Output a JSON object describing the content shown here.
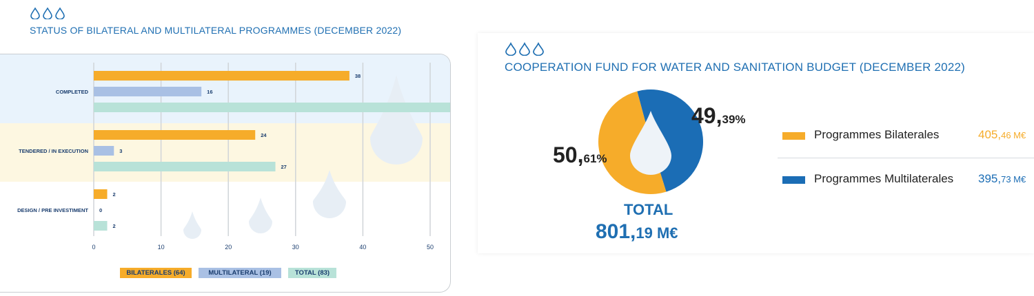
{
  "left": {
    "title": "STATUS OF BILATERAL AND MULTILATERAL PROGRAMMES (DECEMBER 2022)",
    "legend": [
      {
        "label": "BILATERALES (64)",
        "color": "#f6ac2a",
        "text_color": "#1a3d6e"
      },
      {
        "label": "MULTILATERAL (19)",
        "color": "#a9c0e4",
        "text_color": "#1a3d6e"
      },
      {
        "label": "TOTAL (83)",
        "color": "#b8e2d8",
        "text_color": "#1a3d6e"
      }
    ]
  },
  "right": {
    "title": "COOPERATION FUND FOR WATER AND SANITATION BUDGET (DECEMBER 2022)",
    "slice_bil_int": "50,",
    "slice_bil_dec": "61%",
    "slice_mul_int": "49,",
    "slice_mul_dec": "39%",
    "total_label": "TOTAL",
    "total_int": "801,",
    "total_dec": "19 M€",
    "legend": [
      {
        "label": "Programmes Bilaterales",
        "value_int": "405,",
        "value_dec": "46 M€",
        "color": "#f6ac2a"
      },
      {
        "label": "Programmes Multilaterales",
        "value_int": "395,",
        "value_dec": "73 M€",
        "color": "#1b6db5"
      }
    ]
  },
  "chart_data": [
    {
      "type": "bar",
      "orientation": "horizontal",
      "title": "STATUS OF BILATERAL AND MULTILATERAL PROGRAMMES (DECEMBER 2022)",
      "categories": [
        "COMPLETED",
        "TENDERED / IN EXECUTION",
        "DESIGN / PRE INVESTIMENT"
      ],
      "series": [
        {
          "name": "BILATERALES (64)",
          "values": [
            38,
            24,
            2
          ],
          "color": "#f6ac2a"
        },
        {
          "name": "MULTILATERAL (19)",
          "values": [
            16,
            3,
            0
          ],
          "color": "#a9c0e4"
        },
        {
          "name": "TOTAL (83)",
          "values": [
            54,
            27,
            2
          ],
          "color": "#b8e2d8"
        }
      ],
      "xlim": [
        0,
        50
      ],
      "xticks": [
        0,
        10,
        20,
        30,
        40,
        50
      ],
      "grid": true,
      "legend_position": "bottom"
    },
    {
      "type": "pie",
      "title": "COOPERATION FUND FOR WATER AND SANITATION BUDGET (DECEMBER 2022)",
      "labels": [
        "Programmes Bilaterales",
        "Programmes Multilaterales"
      ],
      "values": [
        405.46,
        395.73
      ],
      "percent_labels": [
        "50,61%",
        "49,39%"
      ],
      "colors": [
        "#f6ac2a",
        "#1b6db5"
      ],
      "total": "801,19 M€",
      "legend_position": "right"
    }
  ]
}
